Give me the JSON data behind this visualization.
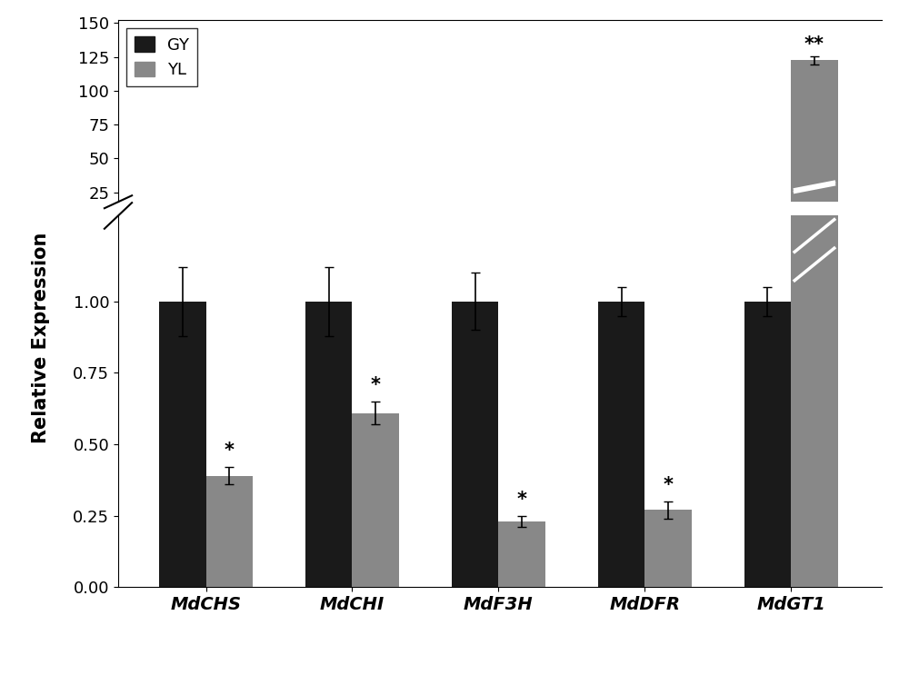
{
  "categories": [
    "MdCHS",
    "MdCHI",
    "MdF3H",
    "MdDFR",
    "MdGT1"
  ],
  "gy_values": [
    1.0,
    1.0,
    1.0,
    1.0,
    1.0
  ],
  "yl_values": [
    0.39,
    0.61,
    0.23,
    0.27,
    122.5
  ],
  "gy_errors": [
    0.12,
    0.12,
    0.1,
    0.05,
    0.05
  ],
  "yl_errors": [
    0.03,
    0.04,
    0.02,
    0.03,
    3.0
  ],
  "gy_color": "#1a1a1a",
  "yl_color": "#888888",
  "ylabel": "Relative Expression",
  "legend_gy": "GY",
  "legend_yl": "YL",
  "ylim_lower": [
    0.0,
    1.3
  ],
  "ylim_upper": [
    18,
    152
  ],
  "yticks_lower": [
    0.0,
    0.25,
    0.5,
    0.75,
    1.0
  ],
  "yticks_upper": [
    25,
    50,
    75,
    100,
    125,
    150
  ],
  "bar_width": 0.32,
  "significance_yl": [
    "*",
    "*",
    "*",
    "*",
    "**"
  ],
  "sig_fontsize": 15,
  "label_fontsize": 14,
  "tick_fontsize": 13,
  "legend_fontsize": 13
}
